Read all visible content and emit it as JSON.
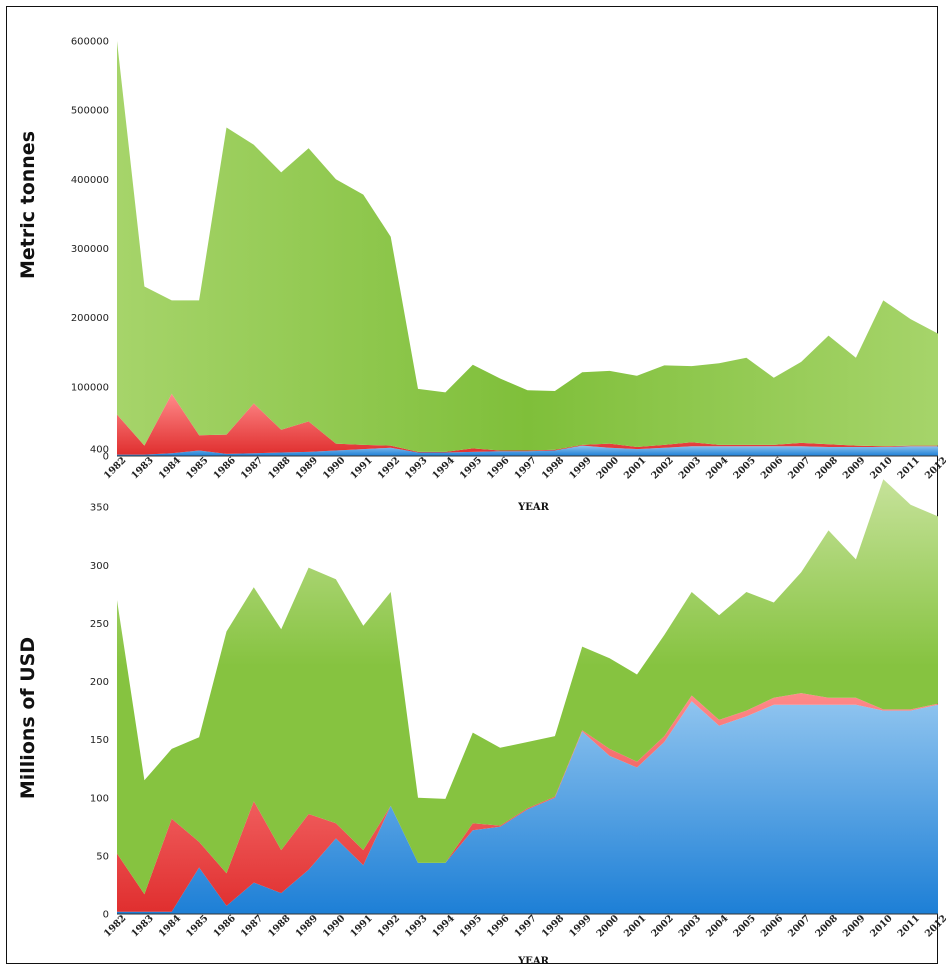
{
  "chart_data": [
    {
      "type": "area",
      "stacked": true,
      "ylabel": "Metric tonnes",
      "xlabel": "YEAR",
      "ylim": [
        0,
        600000
      ],
      "yticks": [
        "0",
        "100000",
        "200000",
        "300000",
        "400000",
        "500000",
        "600000"
      ],
      "ytick_values": [
        0,
        100000,
        200000,
        300000,
        400000,
        500000,
        600000
      ],
      "x": [
        "1982",
        "1983",
        "1984",
        "1985",
        "1986",
        "1987",
        "1988",
        "1989",
        "1990",
        "1991",
        "1992",
        "1993",
        "1994",
        "1995",
        "1996",
        "1997",
        "1998",
        "1999",
        "2000",
        "2001",
        "2002",
        "2003",
        "2004",
        "2005",
        "2006",
        "2007",
        "2008",
        "2009",
        "2010",
        "2011",
        "2012"
      ],
      "colors": [
        "#3a92da",
        "#e24b4b",
        "#8cc840"
      ],
      "series": [
        {
          "values": [
            2000,
            2000,
            4000,
            8000,
            3000,
            4000,
            5000,
            6000,
            8000,
            10000,
            12000,
            5000,
            5000,
            6000,
            7000,
            7000,
            8000,
            15000,
            12000,
            10000,
            12000,
            14000,
            14000,
            14000,
            14000,
            14000,
            13000,
            13000,
            13000,
            14000,
            14000
          ]
        },
        {
          "values": [
            58000,
            13000,
            86000,
            22000,
            28000,
            72000,
            33000,
            44000,
            10000,
            6000,
            3000,
            1000,
            1000,
            5000,
            1000,
            1000,
            1000,
            1000,
            6000,
            3000,
            4000,
            6000,
            2000,
            2000,
            2000,
            5000,
            4000,
            2000,
            1000,
            1000,
            1000
          ]
        },
        {
          "values": [
            540000,
            230000,
            135000,
            195000,
            444000,
            374000,
            372000,
            395000,
            382000,
            362000,
            302000,
            91000,
            86000,
            121000,
            104000,
            87000,
            85000,
            105000,
            105000,
            103000,
            115000,
            110000,
            118000,
            126000,
            97000,
            117000,
            157000,
            127000,
            211000,
            183000,
            162000
          ]
        }
      ]
    },
    {
      "type": "area",
      "stacked": true,
      "ylabel": "Millions of USD",
      "xlabel": "YEAR",
      "ylim": [
        0,
        400
      ],
      "yticks": [
        "0",
        "50",
        "100",
        "150",
        "200",
        "250",
        "300",
        "350",
        "400"
      ],
      "ytick_values": [
        0,
        50,
        100,
        150,
        200,
        250,
        300,
        350,
        400
      ],
      "x": [
        "1982",
        "1983",
        "1984",
        "1985",
        "1986",
        "1987",
        "1988",
        "1989",
        "1990",
        "1991",
        "1992",
        "1993",
        "1994",
        "1995",
        "1996",
        "1997",
        "1998",
        "1999",
        "2000",
        "2001",
        "2002",
        "2003",
        "2004",
        "2005",
        "2006",
        "2007",
        "2008",
        "2009",
        "2010",
        "2011",
        "2012"
      ],
      "colors": [
        "#3a92da",
        "#e24b4b",
        "#8cc840"
      ],
      "series": [
        {
          "values": [
            2,
            2,
            2,
            40,
            7,
            27,
            18,
            38,
            65,
            42,
            93,
            44,
            44,
            72,
            75,
            90,
            100,
            157,
            136,
            126,
            148,
            183,
            162,
            170,
            180,
            180,
            180,
            180,
            175,
            175,
            180
          ]
        },
        {
          "values": [
            50,
            15,
            80,
            22,
            28,
            70,
            37,
            48,
            13,
            13,
            0,
            0,
            0,
            6,
            1,
            1,
            1,
            1,
            6,
            5,
            5,
            5,
            5,
            5,
            6,
            10,
            6,
            6,
            1,
            1,
            1
          ]
        },
        {
          "values": [
            218,
            98,
            60,
            90,
            208,
            184,
            190,
            212,
            210,
            193,
            184,
            56,
            55,
            78,
            67,
            57,
            52,
            72,
            78,
            75,
            87,
            89,
            90,
            102,
            82,
            104,
            144,
            119,
            198,
            176,
            161
          ]
        }
      ]
    }
  ]
}
